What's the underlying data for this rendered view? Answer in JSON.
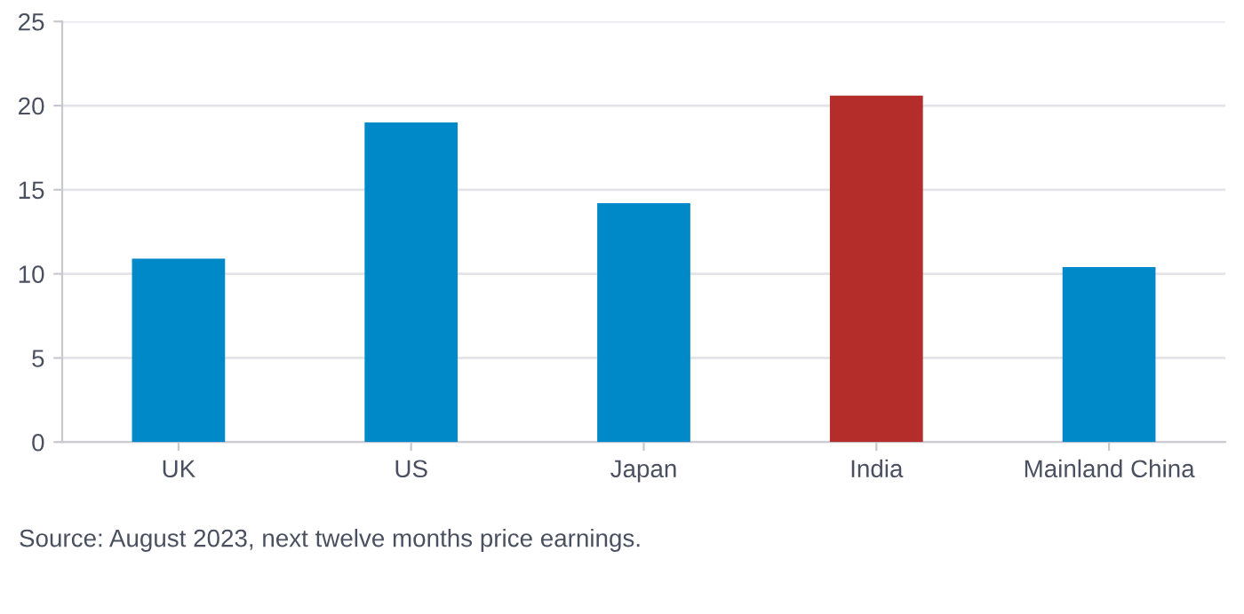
{
  "chart_data": {
    "type": "bar",
    "categories": [
      "UK",
      "US",
      "Japan",
      "India",
      "Mainland China"
    ],
    "values": [
      10.9,
      19.0,
      14.2,
      20.6,
      10.4
    ],
    "colors": [
      "#0089c9",
      "#0089c9",
      "#0089c9",
      "#b52d2a",
      "#0089c9"
    ],
    "ylim": [
      0,
      25
    ],
    "yticks": [
      0,
      5,
      10,
      15,
      20,
      25
    ],
    "grid": "y",
    "annotations": [
      "Source: August 2023, next twelve months price earnings."
    ]
  }
}
